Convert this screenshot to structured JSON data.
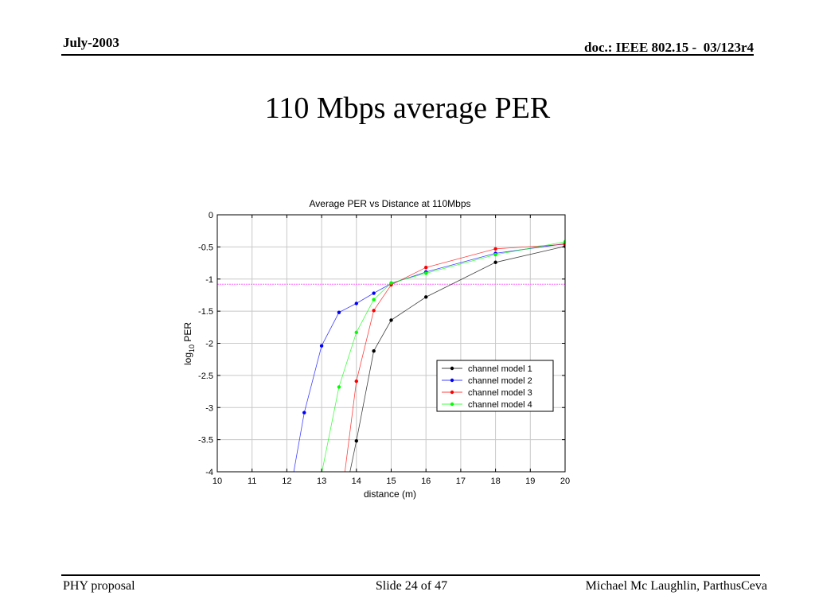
{
  "header": {
    "date": "July-2003",
    "doc": "doc.: IEEE 802.15 -  03/123r4"
  },
  "slide": {
    "title": "110 Mbps average PER"
  },
  "footer": {
    "left": "PHY proposal",
    "center": "Slide 24 of 47",
    "right": "Michael Mc Laughlin, ParthusCeva"
  },
  "chart_data": {
    "type": "line",
    "title": "Average PER vs Distance at 110Mbps",
    "xlabel": "distance (m)",
    "ylabel_parts": {
      "pre": "log",
      "sub": "10",
      "post": " PER"
    },
    "xlim": [
      10,
      20
    ],
    "ylim": [
      -4,
      0
    ],
    "xticks": [
      10,
      11,
      12,
      13,
      14,
      15,
      16,
      17,
      18,
      19,
      20
    ],
    "yticks": [
      0,
      -0.5,
      -1,
      -1.5,
      -2,
      -2.5,
      -3,
      -3.5,
      -4
    ],
    "grid": true,
    "legend_position": "lower-right",
    "reference_line": {
      "y": -1.08,
      "color": "#ff66ff"
    },
    "series": [
      {
        "name": "channel model 1",
        "color": "#000000",
        "points": [
          [
            13.7,
            -4.3
          ],
          [
            14,
            -3.52
          ],
          [
            14.5,
            -2.12
          ],
          [
            15,
            -1.64
          ],
          [
            16,
            -1.28
          ],
          [
            18,
            -0.74
          ],
          [
            20,
            -0.49
          ]
        ]
      },
      {
        "name": "channel model 2",
        "color": "#0000ff",
        "points": [
          [
            12.1,
            -4.3
          ],
          [
            12.5,
            -3.08
          ],
          [
            13,
            -2.04
          ],
          [
            13.5,
            -1.52
          ],
          [
            14,
            -1.38
          ],
          [
            14.5,
            -1.22
          ],
          [
            15,
            -1.07
          ],
          [
            16,
            -0.89
          ],
          [
            18,
            -0.6
          ],
          [
            20,
            -0.45
          ]
        ]
      },
      {
        "name": "channel model 3",
        "color": "#ff0000",
        "points": [
          [
            13.6,
            -4.3
          ],
          [
            14,
            -2.59
          ],
          [
            14.5,
            -1.49
          ],
          [
            15,
            -1.09
          ],
          [
            16,
            -0.82
          ],
          [
            18,
            -0.53
          ],
          [
            20,
            -0.46
          ]
        ]
      },
      {
        "name": "channel model 4",
        "color": "#00ff00",
        "points": [
          [
            12.9,
            -4.3
          ],
          [
            13.5,
            -2.68
          ],
          [
            14,
            -1.83
          ],
          [
            14.5,
            -1.32
          ],
          [
            15,
            -1.06
          ],
          [
            16,
            -0.91
          ],
          [
            18,
            -0.62
          ],
          [
            20,
            -0.42
          ]
        ]
      }
    ]
  }
}
